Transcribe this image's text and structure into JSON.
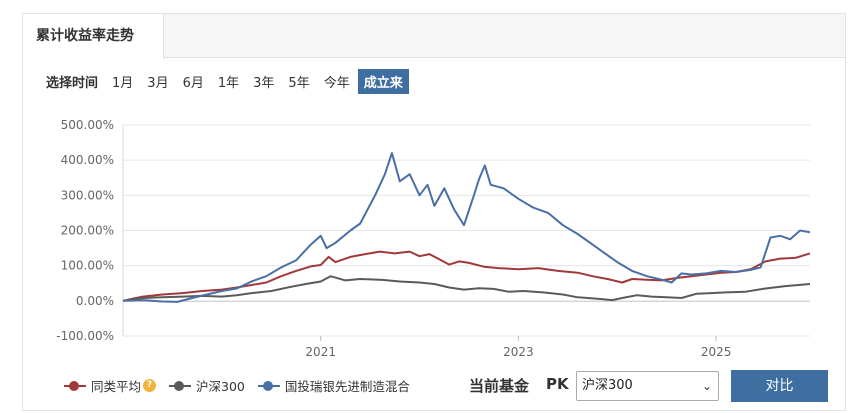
{
  "tab": {
    "title": "累计收益率走势"
  },
  "time_range": {
    "label": "选择时间",
    "options": [
      "1月",
      "3月",
      "6月",
      "1年",
      "3年",
      "5年",
      "今年",
      "成立来"
    ],
    "selected": "成立来"
  },
  "legend": [
    {
      "label": "同类平均",
      "color": "#a03a3a",
      "has_help_icon": true,
      "help_icon": "question-icon"
    },
    {
      "label": "沪深300",
      "color": "#5a5a5a"
    },
    {
      "label": "国投瑞银先进制造混合",
      "color": "#4a6fa5"
    }
  ],
  "compare": {
    "label": "当前基金",
    "pk": "PK",
    "select_value": "沪深300",
    "button": "对比"
  },
  "chart_data": {
    "type": "line",
    "x_ticks": [
      2021,
      2023,
      2025
    ],
    "x_range": [
      2019.0,
      2025.95
    ],
    "y_ticks": [
      "500.00%",
      "400.00%",
      "300.00%",
      "200.00%",
      "100.00%",
      "0.00%",
      "-100.00%"
    ],
    "ylim": [
      -100,
      500
    ],
    "grid": true,
    "legend_position": "bottom-left",
    "series": [
      {
        "name": "同类平均",
        "color": "#a03a3a",
        "points": [
          [
            2019.0,
            0
          ],
          [
            2019.2,
            12
          ],
          [
            2019.4,
            18
          ],
          [
            2019.6,
            22
          ],
          [
            2019.8,
            28
          ],
          [
            2020.0,
            32
          ],
          [
            2020.15,
            38
          ],
          [
            2020.3,
            45
          ],
          [
            2020.45,
            52
          ],
          [
            2020.6,
            70
          ],
          [
            2020.75,
            85
          ],
          [
            2020.9,
            98
          ],
          [
            2021.0,
            102
          ],
          [
            2021.08,
            125
          ],
          [
            2021.15,
            110
          ],
          [
            2021.3,
            125
          ],
          [
            2021.45,
            133
          ],
          [
            2021.6,
            140
          ],
          [
            2021.75,
            135
          ],
          [
            2021.9,
            140
          ],
          [
            2022.0,
            127
          ],
          [
            2022.1,
            133
          ],
          [
            2022.2,
            118
          ],
          [
            2022.3,
            103
          ],
          [
            2022.4,
            112
          ],
          [
            2022.5,
            108
          ],
          [
            2022.65,
            97
          ],
          [
            2022.8,
            93
          ],
          [
            2023.0,
            90
          ],
          [
            2023.2,
            93
          ],
          [
            2023.4,
            85
          ],
          [
            2023.6,
            80
          ],
          [
            2023.75,
            70
          ],
          [
            2023.9,
            62
          ],
          [
            2024.05,
            52
          ],
          [
            2024.15,
            62
          ],
          [
            2024.3,
            60
          ],
          [
            2024.45,
            58
          ],
          [
            2024.6,
            65
          ],
          [
            2024.75,
            70
          ],
          [
            2024.9,
            75
          ],
          [
            2025.05,
            80
          ],
          [
            2025.2,
            82
          ],
          [
            2025.35,
            90
          ],
          [
            2025.5,
            112
          ],
          [
            2025.65,
            120
          ],
          [
            2025.8,
            122
          ],
          [
            2025.95,
            135
          ]
        ]
      },
      {
        "name": "沪深300",
        "color": "#5a5a5a",
        "points": [
          [
            2019.0,
            0
          ],
          [
            2019.2,
            8
          ],
          [
            2019.4,
            10
          ],
          [
            2019.6,
            12
          ],
          [
            2019.8,
            14
          ],
          [
            2020.0,
            12
          ],
          [
            2020.15,
            16
          ],
          [
            2020.3,
            22
          ],
          [
            2020.5,
            28
          ],
          [
            2020.7,
            40
          ],
          [
            2020.85,
            48
          ],
          [
            2021.0,
            55
          ],
          [
            2021.1,
            70
          ],
          [
            2021.25,
            58
          ],
          [
            2021.4,
            62
          ],
          [
            2021.6,
            60
          ],
          [
            2021.8,
            55
          ],
          [
            2022.0,
            52
          ],
          [
            2022.15,
            48
          ],
          [
            2022.3,
            38
          ],
          [
            2022.45,
            32
          ],
          [
            2022.6,
            36
          ],
          [
            2022.75,
            34
          ],
          [
            2022.9,
            26
          ],
          [
            2023.05,
            28
          ],
          [
            2023.25,
            24
          ],
          [
            2023.45,
            18
          ],
          [
            2023.6,
            10
          ],
          [
            2023.8,
            6
          ],
          [
            2023.95,
            2
          ],
          [
            2024.05,
            8
          ],
          [
            2024.2,
            16
          ],
          [
            2024.35,
            12
          ],
          [
            2024.5,
            10
          ],
          [
            2024.65,
            8
          ],
          [
            2024.8,
            20
          ],
          [
            2024.95,
            22
          ],
          [
            2025.1,
            24
          ],
          [
            2025.3,
            26
          ],
          [
            2025.5,
            35
          ],
          [
            2025.7,
            42
          ],
          [
            2025.95,
            48
          ]
        ]
      },
      {
        "name": "国投瑞银先进制造混合",
        "color": "#4a6fa5",
        "points": [
          [
            2019.0,
            0
          ],
          [
            2019.2,
            2
          ],
          [
            2019.4,
            -2
          ],
          [
            2019.55,
            -3
          ],
          [
            2019.7,
            8
          ],
          [
            2019.85,
            18
          ],
          [
            2020.0,
            28
          ],
          [
            2020.15,
            35
          ],
          [
            2020.3,
            55
          ],
          [
            2020.45,
            70
          ],
          [
            2020.6,
            95
          ],
          [
            2020.75,
            115
          ],
          [
            2020.9,
            160
          ],
          [
            2021.0,
            185
          ],
          [
            2021.06,
            150
          ],
          [
            2021.15,
            165
          ],
          [
            2021.3,
            200
          ],
          [
            2021.4,
            220
          ],
          [
            2021.55,
            300
          ],
          [
            2021.65,
            360
          ],
          [
            2021.72,
            420
          ],
          [
            2021.8,
            340
          ],
          [
            2021.9,
            360
          ],
          [
            2022.0,
            300
          ],
          [
            2022.08,
            330
          ],
          [
            2022.15,
            270
          ],
          [
            2022.25,
            320
          ],
          [
            2022.35,
            260
          ],
          [
            2022.45,
            215
          ],
          [
            2022.55,
            300
          ],
          [
            2022.6,
            345
          ],
          [
            2022.66,
            385
          ],
          [
            2022.72,
            330
          ],
          [
            2022.85,
            320
          ],
          [
            2023.0,
            290
          ],
          [
            2023.15,
            265
          ],
          [
            2023.3,
            250
          ],
          [
            2023.45,
            215
          ],
          [
            2023.6,
            190
          ],
          [
            2023.8,
            150
          ],
          [
            2024.0,
            110
          ],
          [
            2024.15,
            85
          ],
          [
            2024.3,
            70
          ],
          [
            2024.45,
            60
          ],
          [
            2024.55,
            52
          ],
          [
            2024.65,
            78
          ],
          [
            2024.75,
            75
          ],
          [
            2024.9,
            78
          ],
          [
            2025.05,
            85
          ],
          [
            2025.2,
            82
          ],
          [
            2025.35,
            88
          ],
          [
            2025.45,
            95
          ],
          [
            2025.55,
            180
          ],
          [
            2025.65,
            185
          ],
          [
            2025.75,
            175
          ],
          [
            2025.85,
            200
          ],
          [
            2025.95,
            195
          ]
        ]
      }
    ]
  }
}
